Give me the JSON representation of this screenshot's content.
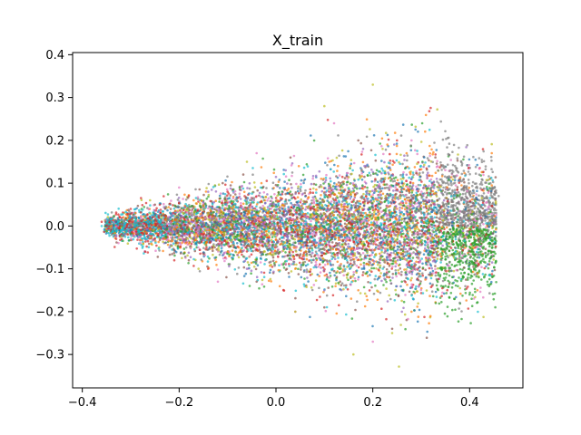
{
  "chart_data": {
    "type": "scatter",
    "title": "X_train",
    "xlabel": "",
    "ylabel": "",
    "xlim": [
      -0.42,
      0.51
    ],
    "ylim": [
      -0.378,
      0.405
    ],
    "xticks": [
      -0.4,
      -0.2,
      0.0,
      0.2,
      0.4
    ],
    "yticks": [
      -0.3,
      -0.2,
      -0.1,
      0.0,
      0.1,
      0.2,
      0.3,
      0.4
    ],
    "xtick_labels": [
      "−0.4",
      "−0.2",
      "0.0",
      "0.2",
      "0.4"
    ],
    "ytick_labels": [
      "−0.3",
      "−0.2",
      "−0.1",
      "0.0",
      "0.1",
      "0.2",
      "0.3",
      "0.4"
    ],
    "grid": false,
    "legend": false,
    "point_alpha": 0.7,
    "colors": [
      "#1f77b4",
      "#ff7f0e",
      "#2ca02c",
      "#d62728",
      "#9467bd",
      "#8c564b",
      "#e377c2",
      "#7f7f7f",
      "#bcbd22",
      "#17becf"
    ],
    "series": [
      {
        "color": "#1f77b4",
        "x": [
          -0.33,
          -0.3,
          -0.26,
          -0.21,
          -0.15,
          -0.08,
          0.0,
          0.07,
          0.14,
          0.2,
          0.26,
          0.31
        ],
        "y": [
          0.01,
          -0.01,
          0.02,
          -0.02,
          0.03,
          -0.04,
          0.05,
          -0.06,
          0.08,
          -0.09,
          0.1,
          -0.12
        ]
      },
      {
        "color": "#ff7f0e",
        "x": [
          -0.34,
          -0.29,
          -0.23,
          -0.17,
          -0.1,
          -0.03,
          0.04,
          0.11,
          0.17,
          0.23,
          0.28
        ],
        "y": [
          0.0,
          0.03,
          -0.03,
          0.06,
          -0.06,
          0.1,
          -0.1,
          0.15,
          -0.15,
          0.19,
          -0.2
        ]
      },
      {
        "color": "#2ca02c",
        "x": [
          0.28,
          0.32,
          0.35,
          0.38,
          0.41,
          0.43,
          0.45,
          0.33,
          0.37,
          0.4,
          0.26,
          0.3
        ],
        "y": [
          -0.1,
          -0.06,
          -0.14,
          -0.09,
          -0.04,
          -0.12,
          -0.07,
          -0.18,
          -0.02,
          -0.16,
          -0.13,
          0.0
        ]
      },
      {
        "color": "#d62728",
        "x": [
          -0.36,
          -0.33,
          -0.3,
          -0.27,
          -0.24,
          -0.21,
          -0.18,
          -0.14,
          -0.1
        ],
        "y": [
          0.01,
          -0.03,
          0.04,
          -0.06,
          0.05,
          -0.08,
          0.07,
          -0.1,
          0.08
        ]
      },
      {
        "color": "#9467bd",
        "x": [
          -0.3,
          -0.22,
          -0.14,
          -0.06,
          0.02,
          0.1,
          0.18,
          0.26
        ],
        "y": [
          0.02,
          -0.05,
          0.08,
          -0.1,
          0.13,
          -0.15,
          0.18,
          -0.2
        ]
      },
      {
        "color": "#8c564b",
        "x": [
          -0.32,
          -0.25,
          -0.18,
          -0.11,
          -0.04,
          0.03,
          0.1,
          0.17,
          0.24
        ],
        "y": [
          -0.02,
          0.05,
          -0.08,
          0.1,
          -0.13,
          0.16,
          -0.19,
          0.2,
          -0.24
        ]
      },
      {
        "color": "#e377c2",
        "x": [
          -0.28,
          -0.2,
          -0.12,
          -0.04,
          0.04,
          0.12,
          0.2,
          0.28
        ],
        "y": [
          -0.04,
          0.09,
          -0.13,
          0.17,
          -0.2,
          0.24,
          -0.27,
          0.2
        ]
      },
      {
        "color": "#7f7f7f",
        "x": [
          0.32,
          0.35,
          0.38,
          0.4,
          0.42,
          0.44,
          0.46,
          0.37
        ],
        "y": [
          0.05,
          0.1,
          0.02,
          0.08,
          0.12,
          0.04,
          0.07,
          0.14
        ]
      },
      {
        "color": "#bcbd22",
        "x": [
          -0.26,
          -0.16,
          -0.06,
          0.04,
          0.1,
          0.16,
          0.2,
          0.24
        ],
        "y": [
          0.06,
          -0.1,
          0.15,
          -0.2,
          0.28,
          -0.3,
          0.33,
          -0.25
        ]
      },
      {
        "color": "#17becf",
        "x": [
          -0.36,
          -0.34,
          -0.32,
          -0.3,
          -0.28,
          -0.26,
          -0.24,
          -0.22,
          0.24,
          0.27,
          0.3
        ],
        "y": [
          0.0,
          0.01,
          -0.01,
          0.02,
          -0.02,
          0.01,
          -0.01,
          0.0,
          0.03,
          -0.02,
          0.01
        ]
      }
    ],
    "density": {
      "center_x": -0.37,
      "center_y": 0.0,
      "tip_x": 0.46,
      "spread_top": 0.34,
      "spread_bottom": -0.33,
      "approx_points": 9000
    }
  }
}
